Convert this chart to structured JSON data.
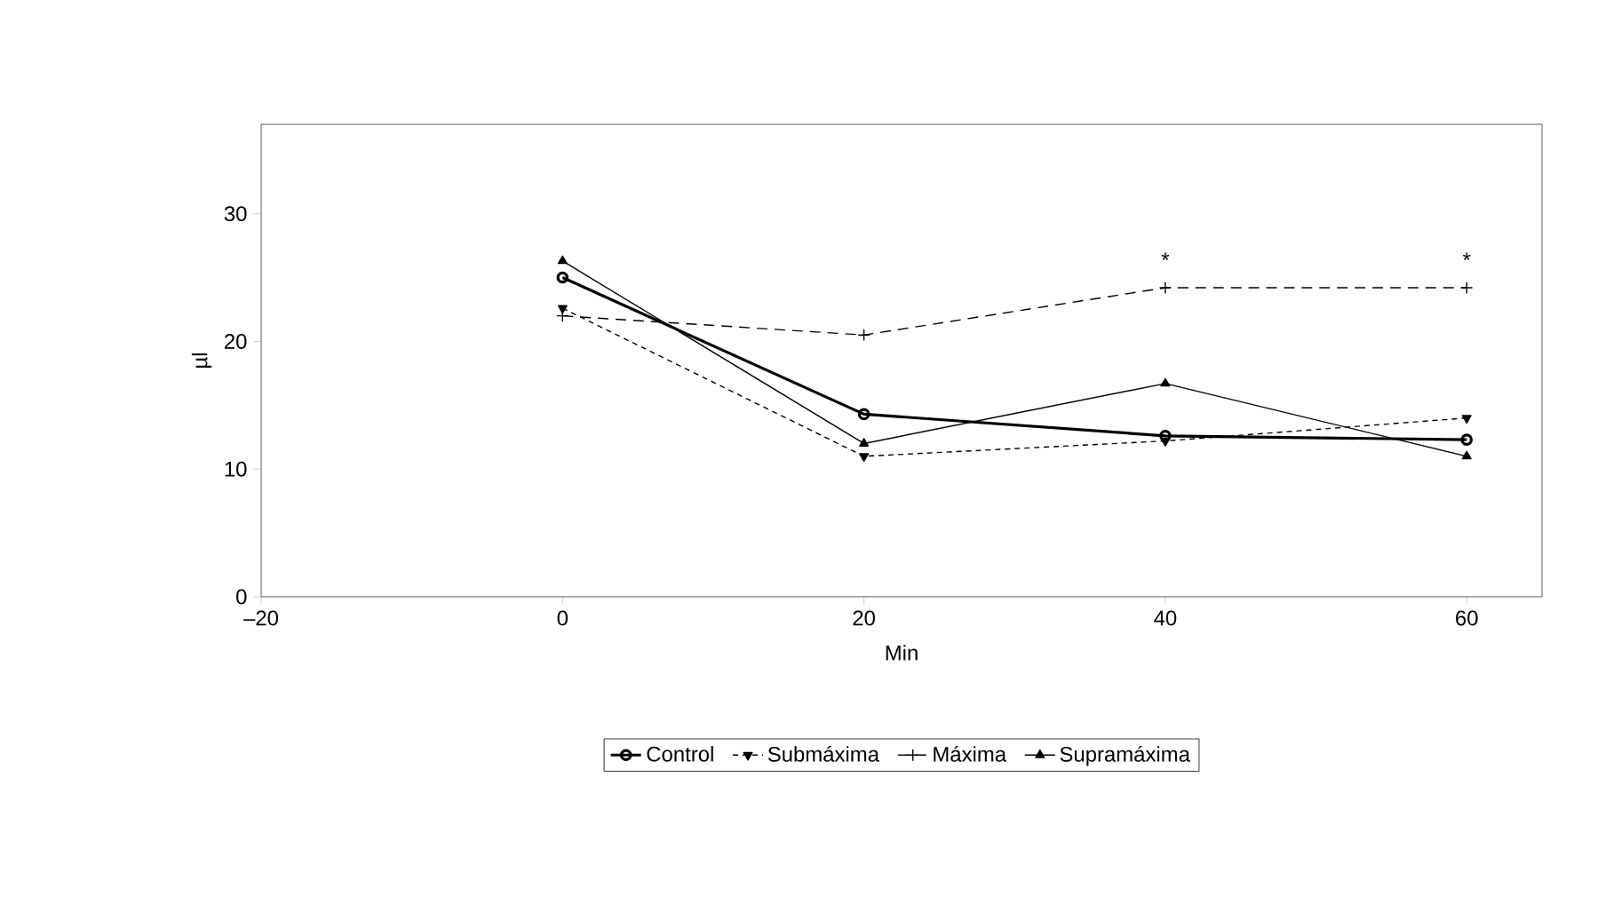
{
  "chart_data": {
    "type": "line",
    "xlabel": "Min",
    "ylabel": "µl",
    "x": [
      0,
      20,
      40,
      60
    ],
    "series": [
      {
        "name": "Control",
        "color": "#000000",
        "values": [
          25,
          14.3,
          12.6,
          12.3
        ],
        "marker": "circle",
        "line_style": "solid"
      },
      {
        "name": "Submáxima",
        "color": "#000000",
        "values": [
          22.6,
          11,
          12.2,
          14
        ],
        "marker": "triangle-down",
        "line_style": "dotted"
      },
      {
        "name": "Máxima",
        "color": "#000000",
        "values": [
          22,
          20.5,
          24.2,
          24.2
        ],
        "marker": "cross",
        "line_style": "dashed"
      },
      {
        "name": "Supramáxima",
        "color": "#000000",
        "values": [
          26.3,
          12,
          16.7,
          11
        ],
        "marker": "triangle",
        "line_style": "solid"
      }
    ],
    "xlim": [
      -20,
      65
    ],
    "ylim": [
      0,
      37
    ],
    "xticks": [
      {
        "value": -20,
        "label": "–20"
      },
      0,
      20,
      40,
      60
    ],
    "yticks": [
      0,
      10,
      20,
      30
    ],
    "grid": false,
    "legend": "bottom",
    "annotations": [
      {
        "text": "*",
        "x": 40,
        "y": 24.2
      },
      {
        "text": "*",
        "x": 60,
        "y": 24.2
      }
    ]
  }
}
